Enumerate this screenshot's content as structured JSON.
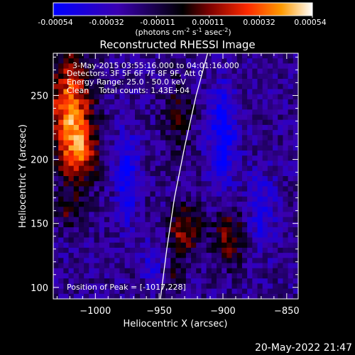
{
  "colorbar": {
    "ticks": [
      "-0.00054",
      "-0.00032",
      "-0.00011",
      "0.00011",
      "0.00032",
      "0.00054"
    ],
    "tick_values": [
      -0.00054,
      -0.00032,
      -0.00011,
      0.00011,
      0.00032,
      0.00054
    ],
    "units_base": "(photons cm",
    "units_exp1": "-2",
    "units_mid1": " s",
    "units_exp2": "-1",
    "units_mid2": " asec",
    "units_exp3": "-2",
    "units_end": ")",
    "colors": [
      "#0000ff",
      "#3a00b0",
      "#000000",
      "#7a0000",
      "#ff2a00",
      "#ff9a00",
      "#ffffff"
    ]
  },
  "annotations": {
    "line1": "3-May-2015 03:55:16.000 to 04:01:16.000",
    "line2": "Detectors: 3F 5F 6F 7F 8F 9F, Att 0",
    "line3": "Energy Range: 25.0 - 50.0 keV",
    "line4": "Clean    Total counts: 1.43E+04",
    "peak": "Position of Peak = [-1017,228]"
  },
  "timestamp": "20-May-2022 21:47",
  "chart_data": {
    "type": "heatmap",
    "title": "Reconstructed RHESSI Image",
    "xlabel": "Heliocentric X (arcsec)",
    "ylabel": "Heliocentric Y (arcsec)",
    "xlim": [
      -1033,
      -841
    ],
    "ylim": [
      91,
      283
    ],
    "xticks": [
      -1000,
      -950,
      -900,
      -850
    ],
    "yticks": [
      100,
      150,
      200,
      250
    ],
    "xtick_labels": [
      "−1000",
      "−950",
      "−900",
      "−850"
    ],
    "ytick_labels": [
      "100",
      "150",
      "200",
      "250"
    ],
    "value_range": [
      -0.00054,
      0.00054
    ],
    "sources": [
      {
        "x": -1020,
        "y": 240,
        "sigma_x": 12,
        "sigma_y": 30,
        "value": 0.00054
      },
      {
        "x": -1012,
        "y": 205,
        "sigma_x": 10,
        "sigma_y": 18,
        "value": 0.00036
      },
      {
        "x": -1022,
        "y": 160,
        "sigma_x": 8,
        "sigma_y": 10,
        "value": 0.0002
      },
      {
        "x": -930,
        "y": 145,
        "sigma_x": 9,
        "sigma_y": 14,
        "value": 0.00036
      },
      {
        "x": -935,
        "y": 235,
        "sigma_x": 9,
        "sigma_y": 20,
        "value": 0.0002
      },
      {
        "x": -895,
        "y": 140,
        "sigma_x": 9,
        "sigma_y": 16,
        "value": 0.0003
      },
      {
        "x": -938,
        "y": 110,
        "sigma_x": 6,
        "sigma_y": 8,
        "value": 0.00016
      },
      {
        "x": -975,
        "y": 185,
        "sigma_x": 6,
        "sigma_y": 25,
        "value": -0.00032
      },
      {
        "x": -900,
        "y": 220,
        "sigma_x": 8,
        "sigma_y": 28,
        "value": -0.00032
      },
      {
        "x": -870,
        "y": 160,
        "sigma_x": 8,
        "sigma_y": 20,
        "value": -0.00022
      },
      {
        "x": -955,
        "y": 120,
        "sigma_x": 6,
        "sigma_y": 12,
        "value": -0.00018
      }
    ],
    "limb_curve": [
      [
        -949,
        91
      ],
      [
        -944,
        130
      ],
      [
        -938,
        170
      ],
      [
        -930,
        210
      ],
      [
        -921,
        250
      ],
      [
        -912,
        283
      ]
    ]
  }
}
